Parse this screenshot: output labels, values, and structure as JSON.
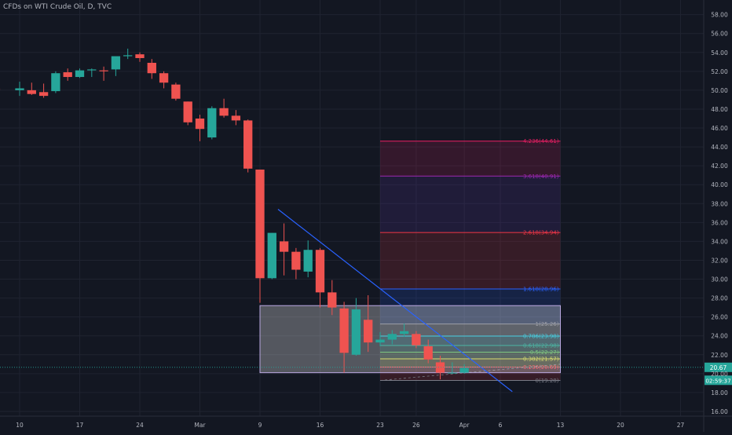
{
  "title": "CFDs on WTI Crude Oil, D, TVC",
  "chart_data": {
    "type": "candlestick",
    "symbol": "CFDs on WTI Crude Oil",
    "interval": "D",
    "source": "TVC",
    "ylim": [
      15.5,
      58.8
    ],
    "y_ticks": [
      16,
      18,
      20,
      22,
      24,
      26,
      28,
      30,
      32,
      34,
      36,
      38,
      40,
      42,
      44,
      46,
      48,
      50,
      52,
      54,
      56,
      58
    ],
    "x_ticks": [
      {
        "label": "10",
        "slot": -5
      },
      {
        "label": "17",
        "slot": 0
      },
      {
        "label": "24",
        "slot": 5
      },
      {
        "label": "Mar",
        "slot": 10
      },
      {
        "label": "9",
        "slot": 15
      },
      {
        "label": "16",
        "slot": 20
      },
      {
        "label": "23",
        "slot": 25
      },
      {
        "label": "26",
        "slot": 28
      },
      {
        "label": "Apr",
        "slot": 32
      },
      {
        "label": "6",
        "slot": 35
      },
      {
        "label": "13",
        "slot": 40
      },
      {
        "label": "20",
        "slot": 45
      },
      {
        "label": "27",
        "slot": 50
      }
    ],
    "candles": [
      {
        "slot": -8,
        "o": 50.4,
        "h": 51.2,
        "l": 49.6,
        "c": 50.2
      },
      {
        "slot": -7,
        "o": 50.2,
        "h": 51.6,
        "l": 49.7,
        "c": 50.0
      },
      {
        "slot": -5,
        "o": 50.0,
        "h": 50.9,
        "l": 49.4,
        "c": 50.2
      },
      {
        "slot": -4,
        "o": 50.0,
        "h": 50.8,
        "l": 49.5,
        "c": 49.6
      },
      {
        "slot": -3,
        "o": 49.8,
        "h": 50.7,
        "l": 49.2,
        "c": 49.4
      },
      {
        "slot": -2,
        "o": 49.9,
        "h": 52.0,
        "l": 49.7,
        "c": 51.8
      },
      {
        "slot": -1,
        "o": 51.9,
        "h": 52.3,
        "l": 51.0,
        "c": 51.4
      },
      {
        "slot": 0,
        "o": 51.4,
        "h": 52.3,
        "l": 51.3,
        "c": 52.1
      },
      {
        "slot": 1,
        "o": 52.1,
        "h": 52.3,
        "l": 51.4,
        "c": 52.2
      },
      {
        "slot": 2,
        "o": 52.1,
        "h": 52.5,
        "l": 51.0,
        "c": 52.0
      },
      {
        "slot": 3,
        "o": 52.2,
        "h": 53.5,
        "l": 51.5,
        "c": 53.6
      },
      {
        "slot": 4,
        "o": 53.6,
        "h": 54.4,
        "l": 53.3,
        "c": 53.7
      },
      {
        "slot": 5,
        "o": 53.8,
        "h": 54.0,
        "l": 53.0,
        "c": 53.4
      },
      {
        "slot": 6,
        "o": 52.9,
        "h": 53.3,
        "l": 51.2,
        "c": 51.8
      },
      {
        "slot": 7,
        "o": 51.8,
        "h": 52.0,
        "l": 50.2,
        "c": 50.8
      },
      {
        "slot": 8,
        "o": 50.6,
        "h": 50.8,
        "l": 48.9,
        "c": 49.1
      },
      {
        "slot": 9,
        "o": 48.8,
        "h": 48.8,
        "l": 46.3,
        "c": 46.6
      },
      {
        "slot": 10,
        "o": 47.0,
        "h": 47.4,
        "l": 44.6,
        "c": 45.9
      },
      {
        "slot": 11,
        "o": 45.0,
        "h": 48.3,
        "l": 44.8,
        "c": 48.1
      },
      {
        "slot": 12,
        "o": 48.1,
        "h": 49.1,
        "l": 47.1,
        "c": 47.3
      },
      {
        "slot": 13,
        "o": 47.3,
        "h": 47.9,
        "l": 46.3,
        "c": 46.8
      },
      {
        "slot": 14,
        "o": 46.8,
        "h": 46.9,
        "l": 41.3,
        "c": 41.7
      },
      {
        "slot": 15,
        "o": 41.6,
        "h": 41.6,
        "l": 27.5,
        "c": 30.1
      },
      {
        "slot": 16,
        "o": 30.1,
        "h": 34.9,
        "l": 30.0,
        "c": 34.9
      },
      {
        "slot": 17,
        "o": 34.0,
        "h": 35.9,
        "l": 30.4,
        "c": 32.9
      },
      {
        "slot": 18,
        "o": 32.9,
        "h": 33.3,
        "l": 30.0,
        "c": 31.0
      },
      {
        "slot": 19,
        "o": 30.8,
        "h": 34.1,
        "l": 30.2,
        "c": 33.1
      },
      {
        "slot": 20,
        "o": 33.1,
        "h": 33.3,
        "l": 27.0,
        "c": 28.6
      },
      {
        "slot": 21,
        "o": 28.6,
        "h": 29.9,
        "l": 26.2,
        "c": 27.0
      },
      {
        "slot": 22,
        "o": 26.9,
        "h": 27.6,
        "l": 20.1,
        "c": 22.2
      },
      {
        "slot": 23,
        "o": 22.0,
        "h": 28.0,
        "l": 21.9,
        "c": 26.8
      },
      {
        "slot": 24,
        "o": 25.7,
        "h": 28.3,
        "l": 22.3,
        "c": 23.3
      },
      {
        "slot": 25,
        "o": 23.3,
        "h": 24.4,
        "l": 22.9,
        "c": 23.6
      },
      {
        "slot": 26,
        "o": 23.6,
        "h": 24.6,
        "l": 23.1,
        "c": 24.2
      },
      {
        "slot": 27,
        "o": 24.2,
        "h": 25.3,
        "l": 23.9,
        "c": 24.5
      },
      {
        "slot": 28,
        "o": 24.2,
        "h": 24.5,
        "l": 22.7,
        "c": 23.0
      },
      {
        "slot": 29,
        "o": 22.9,
        "h": 23.6,
        "l": 21.1,
        "c": 21.5
      },
      {
        "slot": 30,
        "o": 21.2,
        "h": 21.9,
        "l": 19.4,
        "c": 20.1
      },
      {
        "slot": 31,
        "o": 20.1,
        "h": 21.2,
        "l": 20.0,
        "c": 20.1
      },
      {
        "slot": 32,
        "o": 20.1,
        "h": 21.0,
        "l": 20.0,
        "c": 20.6
      }
    ],
    "trendline": {
      "from": {
        "slot": 16.5,
        "price": 37.4
      },
      "to": {
        "slot": 36.0,
        "price": 18.1
      }
    },
    "zone": {
      "slot_from": 15.0,
      "slot_to": 40.0,
      "price_top": 27.2,
      "price_bottom": 20.1
    },
    "fib": {
      "slot_from": 25,
      "slot_to": 40,
      "levels": [
        {
          "label": "4.236(44.61)",
          "price": 44.61,
          "color": "#e91e63"
        },
        {
          "label": "3.618(40.91)",
          "price": 40.91,
          "color": "#9c27b0"
        },
        {
          "label": "2.618(34.94)",
          "price": 34.94,
          "color": "#f23645"
        },
        {
          "label": "1.618(28.96)",
          "price": 28.96,
          "color": "#2962ff"
        },
        {
          "label": "1(25.26)",
          "price": 25.26,
          "color": "#787b86"
        },
        {
          "label": "0.786(23.98)",
          "price": 23.98,
          "color": "#00bcd4"
        },
        {
          "label": "0.618(22.98)",
          "price": 22.98,
          "color": "#089981"
        },
        {
          "label": "0.5(22.27)",
          "price": 22.27,
          "color": "#4caf50"
        },
        {
          "label": "0.382(21.57)",
          "price": 21.57,
          "color": "#c9d03a"
        },
        {
          "label": "0.236(20.69)",
          "price": 20.69,
          "color": "#f23645"
        },
        {
          "label": "0(19.28)",
          "price": 19.28,
          "color": "#787b86"
        }
      ],
      "bands": [
        {
          "top": 44.61,
          "bottom": 40.91,
          "color": "#e91e63"
        },
        {
          "top": 40.91,
          "bottom": 34.94,
          "color": "#673ab7"
        },
        {
          "top": 34.94,
          "bottom": 28.96,
          "color": "#f23645"
        },
        {
          "top": 28.96,
          "bottom": 25.26,
          "color": "#2962ff"
        },
        {
          "top": 25.26,
          "bottom": 23.98,
          "color": "#787b86"
        },
        {
          "top": 23.98,
          "bottom": 22.98,
          "color": "#00bcd4"
        },
        {
          "top": 22.98,
          "bottom": 22.27,
          "color": "#089981"
        },
        {
          "top": 22.27,
          "bottom": 21.57,
          "color": "#4caf50"
        },
        {
          "top": 21.57,
          "bottom": 20.69,
          "color": "#c9d03a"
        },
        {
          "top": 20.69,
          "bottom": 19.28,
          "color": "#f23645"
        }
      ]
    },
    "current_price": {
      "label": "20.67",
      "price": 20.67,
      "color": "#26a69a"
    },
    "countdown": {
      "label": "02:59:37",
      "price": 19.3,
      "color": "#26a69a"
    },
    "colors": {
      "background": "#131722",
      "grid": "#1f2330",
      "text": "#b2b5be",
      "up": "#26a69a",
      "down": "#ef5350",
      "trendline": "#2962ff",
      "zone": "#ffffff"
    }
  }
}
